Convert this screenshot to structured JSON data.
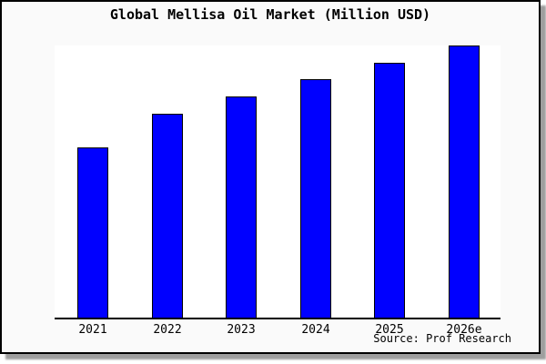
{
  "chart_data": {
    "type": "bar",
    "title": "Global Mellisa Oil Market (Million USD)",
    "categories": [
      "2021",
      "2022",
      "2023",
      "2024",
      "2025",
      "2026e"
    ],
    "values": [
      187,
      224,
      243,
      262,
      280,
      299
    ],
    "value_axis_note": "y-axis has no ticks or labels; values are relative estimates proportional to bar heights",
    "xlabel": "",
    "ylabel": "",
    "ylim": [
      0,
      299
    ],
    "gridlines": false,
    "legend": false,
    "y_axis_visible": false,
    "x_axis_line": true,
    "source": "Source: Prof Research",
    "bar_color": "#0000ff",
    "bar_edge_color": "#000000"
  },
  "colors": {
    "card_background": "#fafafa",
    "plot_background": "#ffffff",
    "border": "#000000",
    "shadow": "#9e9e9e",
    "text": "#000000",
    "bar_fill": "#0000ff"
  }
}
